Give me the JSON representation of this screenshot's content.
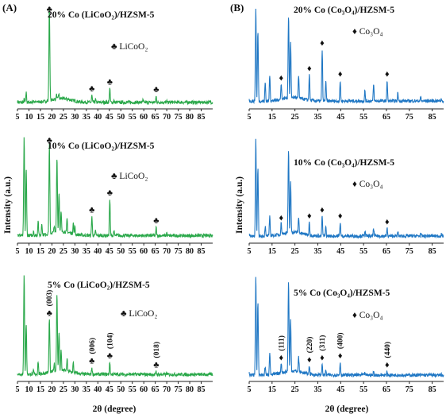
{
  "panels": [
    {
      "label": "(A)",
      "color": "#2aa84a",
      "xlabel": "2θ (degree)",
      "ylabel": "Intensity (a.u.)",
      "legend_marker": "♣",
      "legend_text": "LiCoO₂"
    },
    {
      "label": "(B)",
      "color": "#1f77c4",
      "xlabel": "2θ (degree)",
      "ylabel": "Intensity (a.u.)",
      "legend_marker": "♦",
      "legend_text": "Co₃O₄"
    }
  ],
  "chart_data": [
    {
      "type": "line",
      "title": "20% Co (LiCoO₂)/HZSM-5",
      "xlim": [
        5,
        90
      ],
      "xticks": [
        5,
        10,
        15,
        20,
        25,
        30,
        35,
        40,
        45,
        50,
        55,
        60,
        65,
        70,
        75,
        80,
        85
      ],
      "xlabel": "2θ (degree)",
      "ylabel": "Intensity (a.u.)",
      "series": [
        {
          "name": "LiCoO₂",
          "x": [
            5,
            7.9,
            8.8,
            12,
            14,
            18.9,
            22,
            23,
            37.4,
            39,
            45.2,
            47,
            59.6,
            65.4,
            70,
            80,
            89
          ],
          "y": [
            3,
            5,
            12,
            4,
            3,
            100,
            6,
            7,
            9,
            5,
            16,
            4,
            4,
            8,
            3,
            3,
            3
          ]
        }
      ],
      "markers": [
        {
          "x": 18.9,
          "symbol": "♣"
        },
        {
          "x": 37.4,
          "symbol": "♣"
        },
        {
          "x": 45.2,
          "symbol": "♣"
        },
        {
          "x": 65.4,
          "symbol": "♣"
        }
      ],
      "legend": "LiCoO₂"
    },
    {
      "type": "line",
      "title": "10% Co (LiCoO₂)/HZSM-5",
      "xlim": [
        5,
        90
      ],
      "xticks": [
        5,
        10,
        15,
        20,
        25,
        30,
        35,
        40,
        45,
        50,
        55,
        60,
        65,
        70,
        75,
        80,
        85
      ],
      "xlabel": "2θ (degree)",
      "ylabel": "Intensity (a.u.)",
      "series": [
        {
          "name": "LiCoO₂",
          "x": [
            5,
            7.9,
            8.8,
            12,
            14,
            15.6,
            18.9,
            21,
            22.2,
            23.1,
            24,
            26.6,
            29.3,
            30,
            37.4,
            39,
            45.2,
            47,
            65.4,
            70,
            89
          ],
          "y": [
            5,
            100,
            70,
            8,
            18,
            15,
            92,
            10,
            78,
            42,
            22,
            16,
            14,
            10,
            22,
            8,
            39,
            8,
            11,
            6,
            4
          ]
        }
      ],
      "markers": [
        {
          "x": 18.9,
          "symbol": "♣"
        },
        {
          "x": 37.4,
          "symbol": "♣"
        },
        {
          "x": 45.2,
          "symbol": "♣"
        },
        {
          "x": 65.4,
          "symbol": "♣"
        }
      ],
      "legend": "LiCoO₂"
    },
    {
      "type": "line",
      "title": "5% Co (LiCoO₂)/HZSM-5",
      "xlim": [
        5,
        90
      ],
      "xticks": [
        5,
        10,
        15,
        20,
        25,
        30,
        35,
        40,
        45,
        50,
        55,
        60,
        65,
        70,
        75,
        80,
        85
      ],
      "xlabel": "2θ (degree)",
      "ylabel": "Intensity (a.u.)",
      "series": [
        {
          "name": "LiCoO₂",
          "x": [
            5,
            7.9,
            8.8,
            12,
            14,
            18.9,
            21,
            22.2,
            23.1,
            24,
            26.6,
            29.3,
            37.4,
            45.2,
            65.4,
            70,
            89
          ],
          "y": [
            4,
            100,
            52,
            6,
            15,
            56,
            10,
            78,
            40,
            22,
            14,
            12,
            9,
            14,
            5,
            4,
            3
          ]
        }
      ],
      "markers": [
        {
          "x": 18.9,
          "symbol": "♣"
        },
        {
          "x": 37.4,
          "symbol": "♣"
        },
        {
          "x": 45.2,
          "symbol": "♣"
        },
        {
          "x": 65.4,
          "symbol": "♣"
        }
      ],
      "legend": "LiCoO₂",
      "annotations": [
        "(003)",
        "(006)",
        "(104)",
        "(018)"
      ]
    },
    {
      "type": "line",
      "title": "20% Co (Co₃O₄)/HZSM-5",
      "xlim": [
        5,
        90
      ],
      "xticks": [
        5,
        15,
        25,
        35,
        45,
        55,
        65,
        75,
        85
      ],
      "xlabel": "2θ (degree)",
      "ylabel": "Intensity (a.u.)",
      "series": [
        {
          "name": "Co₃O₄",
          "x": [
            5,
            7.9,
            8.8,
            12,
            14,
            19,
            22.2,
            23.1,
            26.6,
            31.3,
            36.9,
            38.5,
            44.8,
            55.6,
            59.4,
            65.3,
            70,
            80,
            89
          ],
          "y": [
            5,
            100,
            75,
            22,
            30,
            20,
            88,
            60,
            25,
            30,
            56,
            25,
            24,
            14,
            20,
            24,
            12,
            8,
            6
          ]
        }
      ],
      "markers": [
        {
          "x": 19,
          "symbol": "♦"
        },
        {
          "x": 31.3,
          "symbol": "♦"
        },
        {
          "x": 36.9,
          "symbol": "♦"
        },
        {
          "x": 44.8,
          "symbol": "♦"
        },
        {
          "x": 65.3,
          "symbol": "♦"
        }
      ],
      "legend": "Co₃O₄"
    },
    {
      "type": "line",
      "title": "10% Co (Co₃O₄)/HZSM-5",
      "xlim": [
        5,
        90
      ],
      "xticks": [
        5,
        15,
        25,
        35,
        45,
        55,
        65,
        75,
        85
      ],
      "xlabel": "2θ (degree)",
      "ylabel": "Intensity (a.u.)",
      "series": [
        {
          "name": "Co₃O₄",
          "x": [
            5,
            7.9,
            8.8,
            12,
            14,
            19,
            22.2,
            23.1,
            26.6,
            31.3,
            36.9,
            38.5,
            44.8,
            55.6,
            59.4,
            65.3,
            70,
            80,
            89
          ],
          "y": [
            4,
            100,
            70,
            12,
            22,
            14,
            84,
            52,
            18,
            16,
            22,
            12,
            16,
            8,
            10,
            10,
            7,
            5,
            4
          ]
        }
      ],
      "markers": [
        {
          "x": 19,
          "symbol": "♦"
        },
        {
          "x": 31.3,
          "symbol": "♦"
        },
        {
          "x": 36.9,
          "symbol": "♦"
        },
        {
          "x": 44.8,
          "symbol": "♦"
        },
        {
          "x": 65.3,
          "symbol": "♦"
        }
      ],
      "legend": "Co₃O₄"
    },
    {
      "type": "line",
      "title": "5% Co (Co₃O₄)/HZSM-5",
      "xlim": [
        5,
        90
      ],
      "xticks": [
        5,
        15,
        25,
        35,
        45,
        55,
        65,
        75,
        85
      ],
      "xlabel": "2θ (degree)",
      "ylabel": "Intensity (a.u.)",
      "series": [
        {
          "name": "Co₃O₄",
          "x": [
            5,
            7.9,
            8.8,
            12,
            14,
            19,
            22.2,
            23.1,
            26.6,
            31.3,
            36.9,
            38.5,
            44.8,
            55.6,
            59.4,
            65.3,
            70,
            80,
            89
          ],
          "y": [
            3,
            100,
            72,
            10,
            24,
            12,
            90,
            52,
            16,
            10,
            12,
            6,
            14,
            4,
            5,
            5,
            3,
            2,
            2
          ]
        }
      ],
      "markers": [
        {
          "x": 19,
          "symbol": "♦"
        },
        {
          "x": 31.3,
          "symbol": "♦"
        },
        {
          "x": 36.9,
          "symbol": "♦"
        },
        {
          "x": 44.8,
          "symbol": "♦"
        },
        {
          "x": 65.3,
          "symbol": "♦"
        }
      ],
      "legend": "Co₃O₄",
      "annotations": [
        "(111)",
        "(220)",
        "(311)",
        "(400)",
        "(440)"
      ]
    }
  ]
}
